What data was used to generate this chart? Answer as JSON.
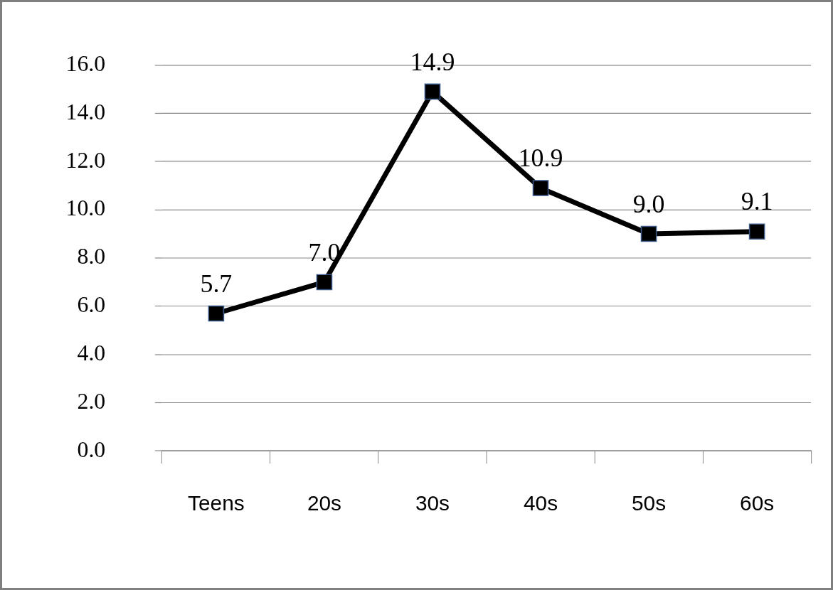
{
  "chart_data": {
    "type": "line",
    "categories": [
      "Teens",
      "20s",
      "30s",
      "40s",
      "50s",
      "60s"
    ],
    "series": [
      {
        "color": "#000000",
        "values": [
          5.7,
          7.0,
          14.9,
          10.9,
          9.0,
          9.1
        ],
        "value_labels": [
          "5.7",
          "7.0",
          "14.9",
          "10.9",
          "9.0",
          "9.1"
        ]
      }
    ],
    "ylim": [
      0,
      16
    ],
    "yticks": [
      {
        "value": 0,
        "label": "0.0"
      },
      {
        "value": 2,
        "label": "2.0"
      },
      {
        "value": 4,
        "label": "4.0"
      },
      {
        "value": 6,
        "label": "6.0"
      },
      {
        "value": 8,
        "label": "8.0"
      },
      {
        "value": 10,
        "label": "10.0"
      },
      {
        "value": 12,
        "label": "12.0"
      },
      {
        "value": 14,
        "label": "14.0"
      },
      {
        "value": 16,
        "label": "16.0"
      }
    ],
    "grid": "y",
    "legend": false,
    "marker": "square",
    "line_style": "solid"
  }
}
